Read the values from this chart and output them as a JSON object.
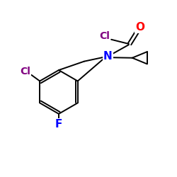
{
  "background_color": "#ffffff",
  "bond_color": "#000000",
  "atom_colors": {
    "O": "#ff0000",
    "N": "#0000ff",
    "Cl_purple": "#800080",
    "F": "#0000ff",
    "C": "#000000"
  },
  "figsize": [
    2.5,
    2.5
  ],
  "dpi": 100,
  "lw": 1.4,
  "fontsize": 11
}
